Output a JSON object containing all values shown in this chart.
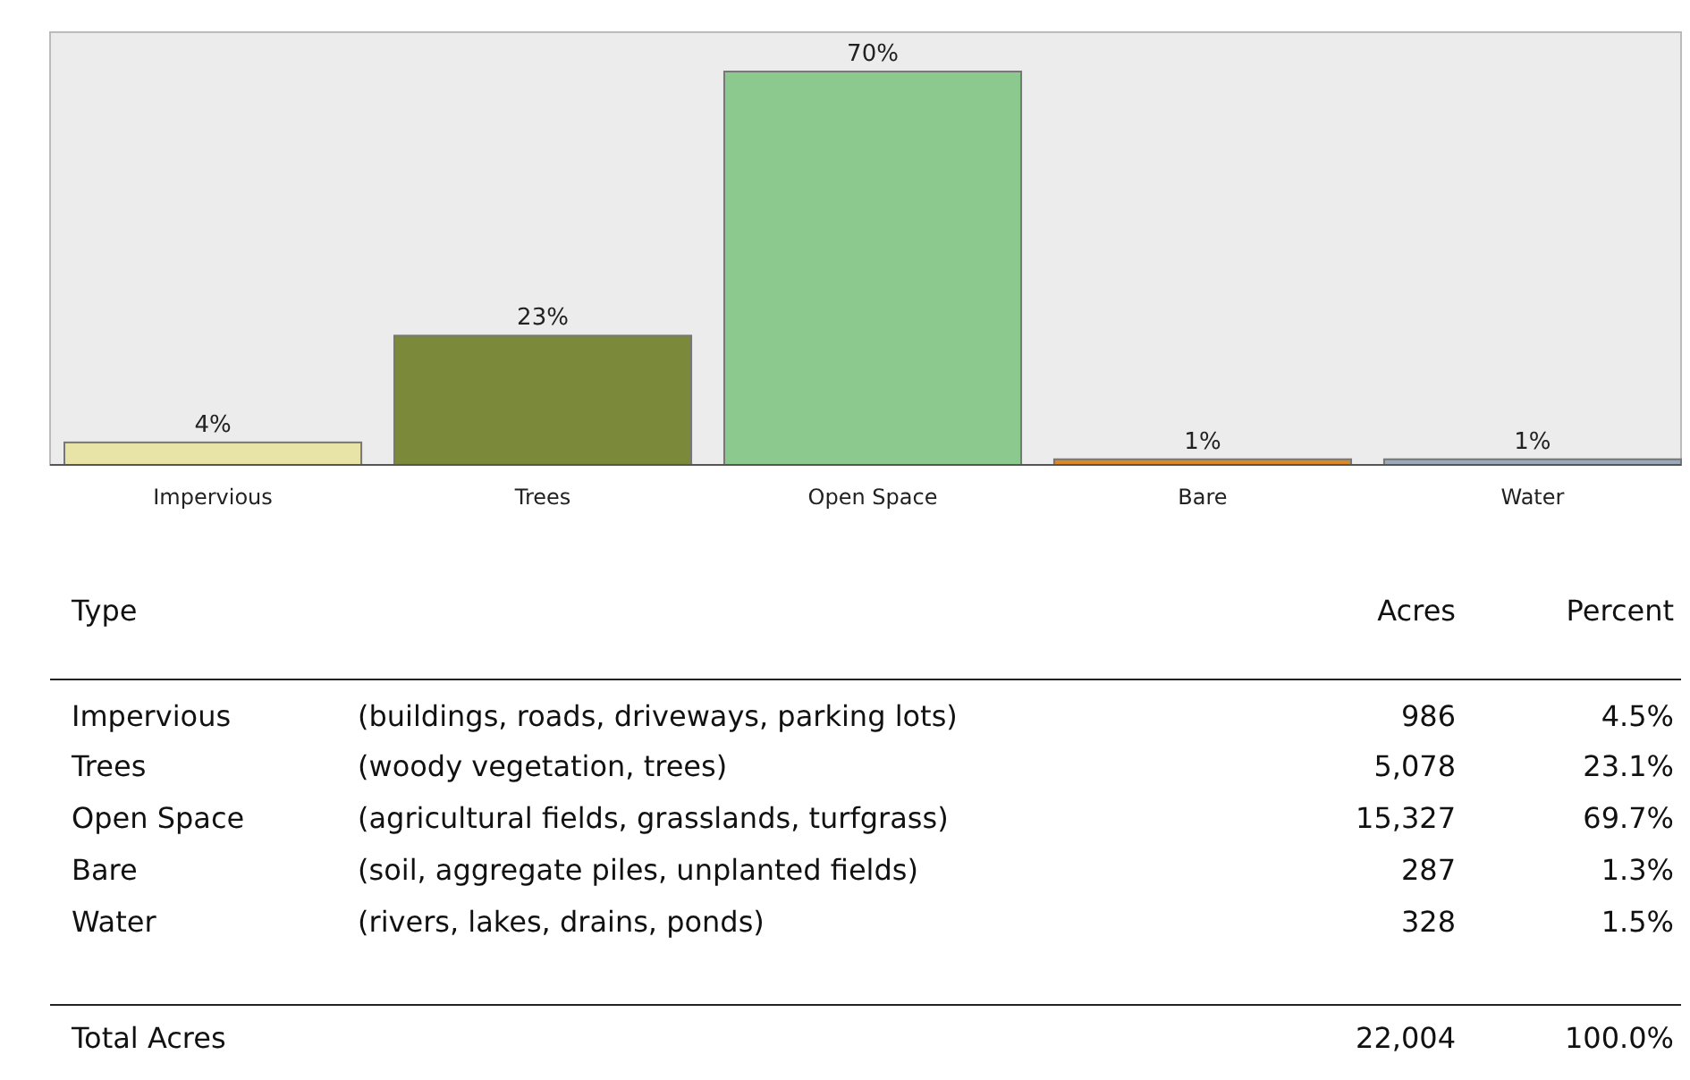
{
  "chart_data": [
    {
      "type": "bar",
      "categories": [
        "Impervious",
        "Trees",
        "Open Space",
        "Bare",
        "Water"
      ],
      "values": [
        4,
        23,
        70,
        1,
        1
      ],
      "colors": [
        "#e8e4a8",
        "#7a8a3a",
        "#8cc98e",
        "#d9892a",
        "#9aaabb"
      ],
      "value_labels": [
        "4%",
        "23%",
        "70%",
        "1%",
        "1%"
      ]
    },
    {
      "type": "other",
      "legend_title": "Type",
      "categories": [
        "Impervious",
        "Trees",
        "Open Space",
        "Bare",
        "Water",
        "Total Acres"
      ],
      "annotations": [
        "(buildings, roads, driveways, parking lots)",
        "(woody vegetation, trees)",
        "(agricultural fields, grasslands, turfgrass)",
        "(soil, aggregate piles, unplanted fields)",
        "(rivers, lakes, drains, ponds)"
      ],
      "series": [
        {
          "name": "Acres",
          "values": [
            986,
            5078,
            15327,
            287,
            328,
            22004
          ],
          "value_labels": [
            "986",
            "5,078",
            "15,327",
            "287",
            "328",
            "22,004"
          ]
        },
        {
          "name": "Percent",
          "values": [
            4.5,
            23.1,
            69.7,
            1.3,
            1.5,
            100.0
          ],
          "value_labels": [
            "4.5%",
            "23.1%",
            "69.7%",
            "1.3%",
            "1.5%",
            "100.0%"
          ]
        }
      ]
    }
  ]
}
